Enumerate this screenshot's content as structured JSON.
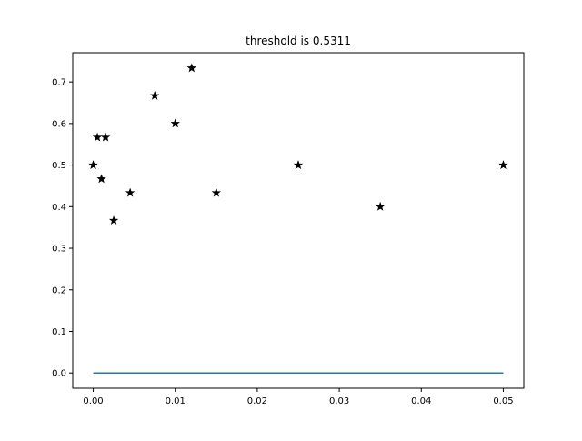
{
  "chart_data": {
    "type": "scatter",
    "title": "threshold is 0.5311",
    "xlabel": "",
    "ylabel": "",
    "xlim": [
      -0.0025,
      0.0525
    ],
    "ylim": [
      -0.0367,
      0.7703
    ],
    "x_ticks": [
      0.0,
      0.01,
      0.02,
      0.03,
      0.04,
      0.05
    ],
    "x_tick_labels": [
      "0.00",
      "0.01",
      "0.02",
      "0.03",
      "0.04",
      "0.05"
    ],
    "y_ticks": [
      0.0,
      0.1,
      0.2,
      0.3,
      0.4,
      0.5,
      0.6,
      0.7
    ],
    "y_tick_labels": [
      "0.0",
      "0.1",
      "0.2",
      "0.3",
      "0.4",
      "0.5",
      "0.6",
      "0.7"
    ],
    "grid": false,
    "series": [
      {
        "kind": "scatter",
        "marker": "star",
        "color": "#000000",
        "x": [
          0.0,
          0.0005,
          0.001,
          0.0015,
          0.0025,
          0.0045,
          0.0075,
          0.01,
          0.012,
          0.015,
          0.025,
          0.035,
          0.05
        ],
        "y": [
          0.5,
          0.5667,
          0.4667,
          0.5667,
          0.3667,
          0.4333,
          0.6667,
          0.6,
          0.7333,
          0.4333,
          0.5,
          0.4,
          0.5
        ]
      },
      {
        "kind": "line",
        "color": "#1f77b4",
        "x": [
          0.0,
          0.05
        ],
        "y": [
          0.0,
          0.0
        ]
      }
    ]
  }
}
